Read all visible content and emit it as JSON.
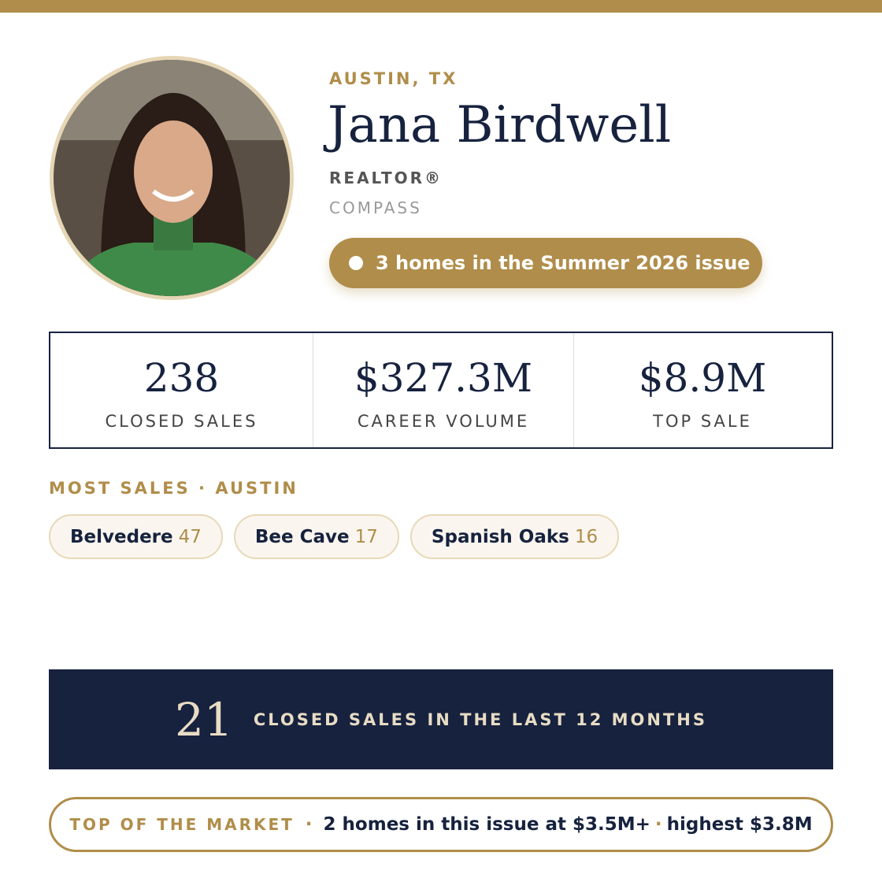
{
  "header": {
    "location": "AUSTIN, TX",
    "name": "Jana Birdwell",
    "title": "REALTOR®",
    "brokerage": "COMPASS",
    "badge": "3 homes in the Summer 2026 issue"
  },
  "stats": [
    {
      "value": "238",
      "label": "CLOSED SALES"
    },
    {
      "value": "$327.3M",
      "label": "CAREER VOLUME"
    },
    {
      "value": "$8.9M",
      "label": "TOP SALE"
    }
  ],
  "most_sales": {
    "heading": "MOST SALES · AUSTIN",
    "areas": [
      {
        "name": "Belvedere",
        "count": 47
      },
      {
        "name": "Bee Cave",
        "count": 17
      },
      {
        "name": "Spanish Oaks",
        "count": 16
      }
    ]
  },
  "banner": {
    "count": 21,
    "text": "CLOSED SALES IN THE LAST 12 MONTHS"
  },
  "footer": {
    "label": "TOP OF THE MARKET",
    "separator": "·",
    "detail": "2 homes in this issue at $3.5M+",
    "highest": "highest $3.8M"
  }
}
